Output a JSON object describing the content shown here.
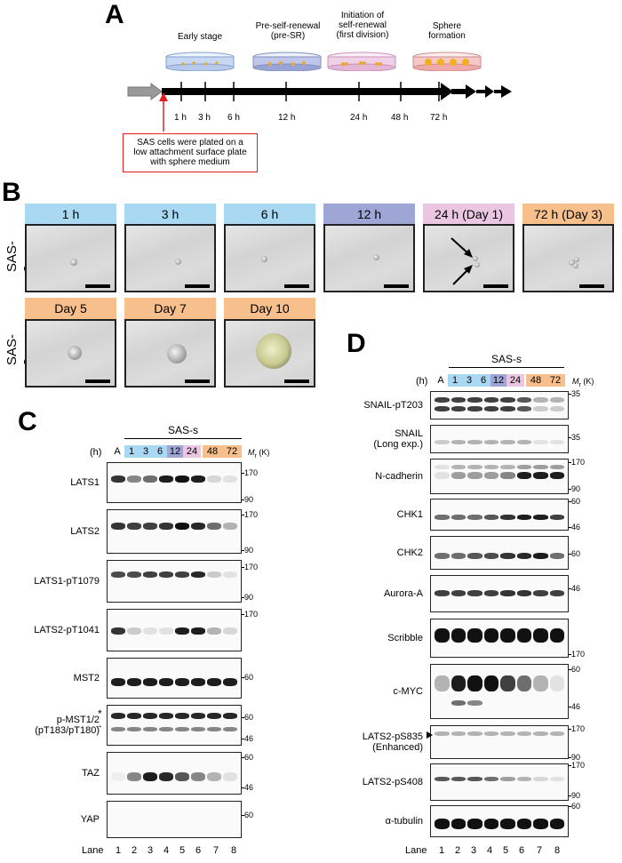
{
  "panelA": {
    "letter": "A",
    "stages": [
      "Early stage",
      "Pre-self-renewal\n(pre-SR)",
      "Initiation of\nself-renewal\n(first division)",
      "Sphere\nformation"
    ],
    "times": [
      "1 h",
      "3 h",
      "6 h",
      "12 h",
      "24 h",
      "48 h",
      "72 h"
    ],
    "note": "SAS cells were plated on a\nlow attachment surface plate\nwith sphere medium"
  },
  "panelB": {
    "letter": "B",
    "row_label": "SAS-s",
    "row1": [
      {
        "label": "1 h",
        "color": "#a9d8f2"
      },
      {
        "label": "3 h",
        "color": "#a9d8f2"
      },
      {
        "label": "6 h",
        "color": "#a9d8f2"
      },
      {
        "label": "12 h",
        "color": "#9ea6d6"
      },
      {
        "label": "24 h (Day 1)",
        "color": "#ebc6e2"
      },
      {
        "label": "72 h (Day 3)",
        "color": "#f6bf8c"
      }
    ],
    "row2": [
      {
        "label": "Day 5",
        "color": "#f6bf8c"
      },
      {
        "label": "Day 7",
        "color": "#f6bf8c"
      },
      {
        "label": "Day 10",
        "color": "#f6bf8c"
      }
    ]
  },
  "panelC": {
    "letter": "C",
    "group": "SAS-s",
    "h": "(h)",
    "lanes_top": [
      "A",
      "1",
      "3",
      "6",
      "12",
      "24",
      "48",
      "72"
    ],
    "mr": "M",
    "mr_sub": "r",
    "mr_unit": "(K)",
    "lane_label": "Lane",
    "lanes": [
      "1",
      "2",
      "3",
      "4",
      "5",
      "6",
      "7",
      "8"
    ],
    "star": "*",
    "blots": [
      {
        "label": "LATS1",
        "mw": [
          "170",
          "90"
        ]
      },
      {
        "label": "LATS2",
        "mw": [
          "170",
          "90"
        ]
      },
      {
        "label": "LATS1-pT1079",
        "mw": [
          "170",
          "90"
        ]
      },
      {
        "label": "LATS2-pT1041",
        "mw": [
          "170"
        ]
      },
      {
        "label": "MST2",
        "mw": [
          "60"
        ]
      },
      {
        "label": "p-MST1/2\n(pT183/pT180)",
        "mw": [
          "60",
          "46"
        ]
      },
      {
        "label": "TAZ",
        "mw": [
          "60",
          "46"
        ]
      },
      {
        "label": "YAP",
        "mw": [
          "60"
        ]
      }
    ]
  },
  "panelD": {
    "letter": "D",
    "group": "SAS-s",
    "h": "(h)",
    "lanes_top": [
      "A",
      "1",
      "3",
      "6",
      "12",
      "24",
      "48",
      "72"
    ],
    "mr": "M",
    "mr_sub": "r",
    "mr_unit": "(K)",
    "lane_label": "Lane",
    "lanes": [
      "1",
      "2",
      "3",
      "4",
      "5",
      "6",
      "7",
      "8"
    ],
    "blots": [
      {
        "label": "SNAIL-pT203",
        "mw": [
          "35"
        ]
      },
      {
        "label": "SNAIL\n(Long exp.)",
        "mw": [
          "35"
        ]
      },
      {
        "label": "N-cadherin",
        "mw": [
          "170",
          "90"
        ]
      },
      {
        "label": "CHK1",
        "mw": [
          "60",
          "46"
        ]
      },
      {
        "label": "CHK2",
        "mw": [
          "60"
        ]
      },
      {
        "label": "Aurora-A",
        "mw": [
          "46"
        ]
      },
      {
        "label": "Scribble",
        "mw": [
          "170"
        ]
      },
      {
        "label": "c-MYC",
        "mw": [
          "60",
          "46"
        ]
      },
      {
        "label": "LATS2-pS835\n(Enhanced)",
        "mw": [
          "170",
          "90"
        ]
      },
      {
        "label": "LATS2-pS408",
        "mw": [
          "170",
          "90"
        ]
      },
      {
        "label": "α-tubulin",
        "mw": [
          "60"
        ]
      }
    ]
  },
  "colors": {
    "blue": "#a9d8f2",
    "purple": "#9ea6d6",
    "pink": "#ebc6e2",
    "orange": "#f6bf8c",
    "arrow_red": "#e02020"
  }
}
